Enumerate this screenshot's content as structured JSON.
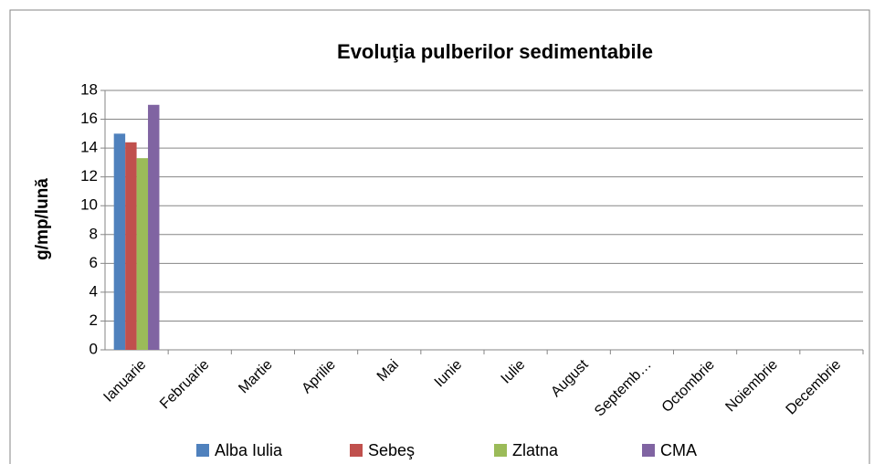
{
  "chart_data": {
    "type": "bar",
    "title": "Evoluţia pulberilor sedimentabile",
    "y_label": "g/mp/lună",
    "categories": [
      "Ianuarie",
      "Februarie",
      "Martie",
      "Aprilie",
      "Mai",
      "Iunie",
      "Iulie",
      "August",
      "Septemb…",
      "Octombrie",
      "Noiembrie",
      "Decembrie"
    ],
    "series": [
      {
        "name": "Alba Iulia",
        "color": "#4f81bd",
        "values": [
          15,
          null,
          null,
          null,
          null,
          null,
          null,
          null,
          null,
          null,
          null,
          null
        ]
      },
      {
        "name": "Sebeş",
        "color": "#c0504d",
        "values": [
          14.4,
          null,
          null,
          null,
          null,
          null,
          null,
          null,
          null,
          null,
          null,
          null
        ]
      },
      {
        "name": "Zlatna",
        "color": "#9bbb59",
        "values": [
          13.3,
          null,
          null,
          null,
          null,
          null,
          null,
          null,
          null,
          null,
          null,
          null
        ]
      },
      {
        "name": "CMA",
        "color": "#8064a2",
        "values": [
          17,
          null,
          null,
          null,
          null,
          null,
          null,
          null,
          null,
          null,
          null,
          null
        ]
      }
    ],
    "ylim": [
      0,
      18
    ],
    "yticks": [
      0,
      2,
      4,
      6,
      8,
      10,
      12,
      14,
      16,
      18
    ],
    "grid": true,
    "legend": "bottom"
  }
}
